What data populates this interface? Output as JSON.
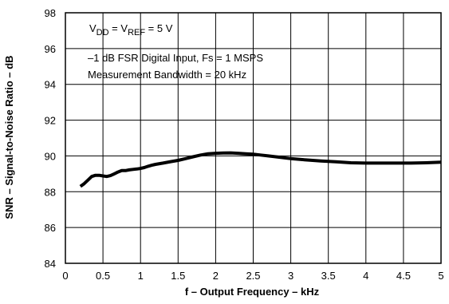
{
  "chart_data": {
    "type": "line",
    "title": "",
    "xlabel": "f – Output Frequency – kHz",
    "ylabel": "SNR – Signal-to-Noise Ratio – dB",
    "xlim": [
      0,
      5
    ],
    "ylim": [
      84,
      98
    ],
    "xticks": [
      0,
      0.5,
      1,
      1.5,
      2,
      2.5,
      3,
      3.5,
      4,
      4.5,
      5
    ],
    "xtick_labels": [
      "0",
      "0.5",
      "1",
      "1.5",
      "2",
      "2.5",
      "3",
      "3.5",
      "4",
      "4.5",
      "5"
    ],
    "yticks": [
      84,
      86,
      88,
      90,
      92,
      94,
      96,
      98
    ],
    "ytick_labels": [
      "84",
      "86",
      "88",
      "90",
      "92",
      "94",
      "96",
      "98"
    ],
    "grid": true,
    "annotations": {
      "vdd_main": "V",
      "vdd_sub": "DD",
      "vref_eq": " = V",
      "vref_sub": "REF",
      "vref_tail": " = 5 V",
      "line2": "–1 dB FSR Digital Input, Fs = 1 MSPS",
      "line3": "Measurement Bandwidth = 20 kHz"
    },
    "series": [
      {
        "color": "#000000",
        "x": [
          0.2,
          0.25,
          0.3,
          0.35,
          0.4,
          0.45,
          0.5,
          0.55,
          0.6,
          0.65,
          0.7,
          0.75,
          0.8,
          0.85,
          0.9,
          0.95,
          1.0,
          1.05,
          1.1,
          1.15,
          1.2,
          1.3,
          1.4,
          1.5,
          1.6,
          1.7,
          1.8,
          1.9,
          2.0,
          2.1,
          2.2,
          2.3,
          2.4,
          2.5,
          2.6,
          2.7,
          2.8,
          2.9,
          3.0,
          3.2,
          3.4,
          3.6,
          3.8,
          4.0,
          4.2,
          4.4,
          4.6,
          4.8,
          5.0
        ],
        "y": [
          88.3,
          88.45,
          88.65,
          88.85,
          88.92,
          88.92,
          88.88,
          88.85,
          88.9,
          89.0,
          89.1,
          89.18,
          89.18,
          89.22,
          89.25,
          89.27,
          89.3,
          89.35,
          89.42,
          89.48,
          89.53,
          89.6,
          89.68,
          89.75,
          89.85,
          89.95,
          90.05,
          90.12,
          90.15,
          90.16,
          90.17,
          90.15,
          90.12,
          90.1,
          90.05,
          90.0,
          89.95,
          89.9,
          89.85,
          89.78,
          89.72,
          89.67,
          89.62,
          89.6,
          89.6,
          89.6,
          89.6,
          89.62,
          89.65
        ]
      }
    ]
  }
}
